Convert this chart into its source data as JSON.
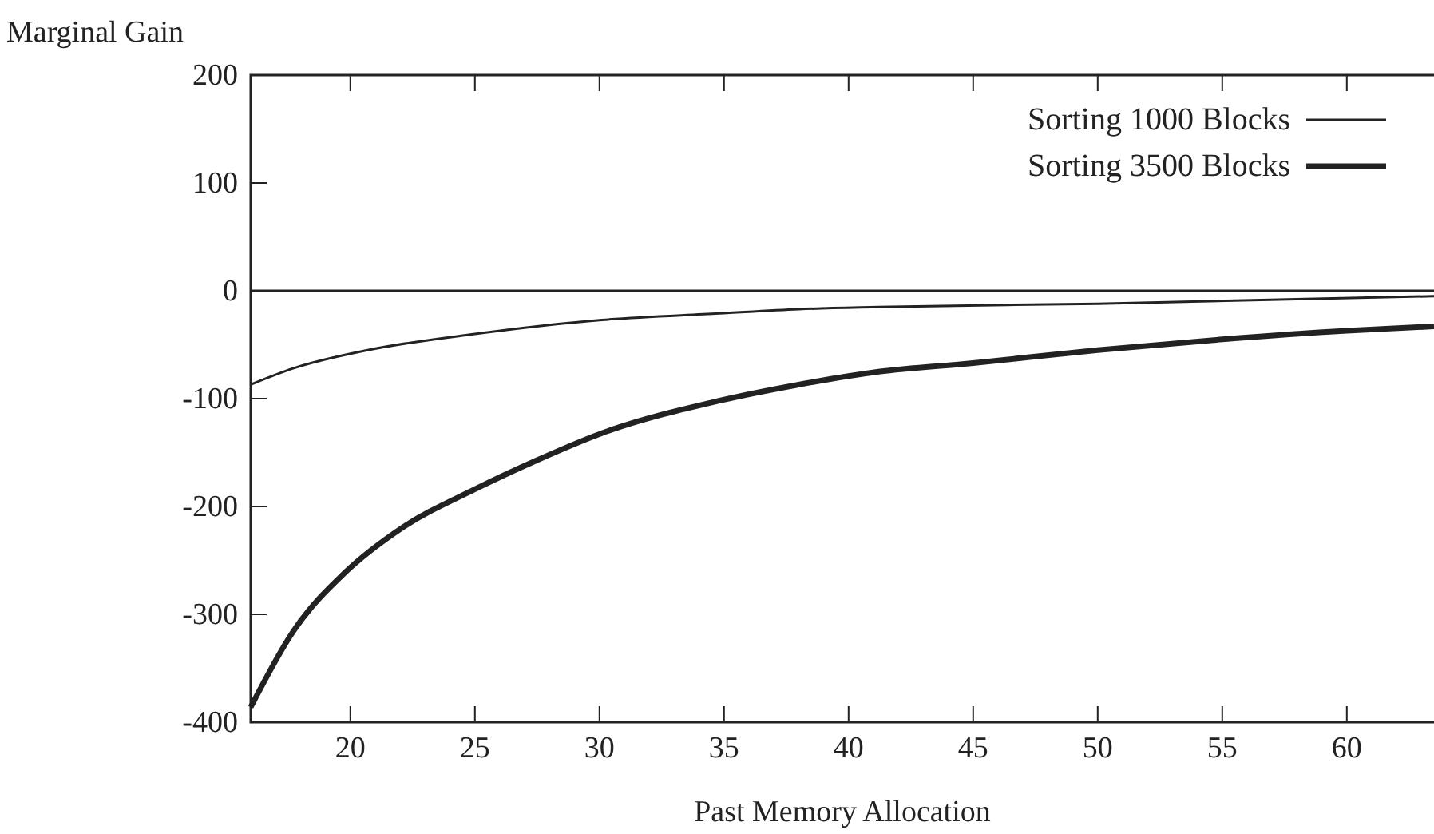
{
  "chart_data": {
    "type": "line",
    "ylabel": "Marginal Gain",
    "xlabel": "Past Memory Allocation",
    "xlim": [
      16,
      63.5
    ],
    "ylim": [
      -400,
      200
    ],
    "xticks": [
      20,
      25,
      30,
      35,
      40,
      45,
      50,
      55,
      60
    ],
    "yticks": [
      -400,
      -300,
      -200,
      -100,
      0,
      100,
      200
    ],
    "legend": "top right",
    "grid": false,
    "line_style": "solid",
    "ref_lines": [
      {
        "axis": "y",
        "value": 0,
        "color": "#222222"
      }
    ],
    "series": [
      {
        "name": "Sorting 1000 Blocks",
        "color": "#222222",
        "x": [
          16,
          17.7,
          20.7,
          25,
          30.1,
          34.8,
          38,
          41.2,
          50,
          63.5
        ],
        "values": [
          -87,
          -72,
          -55,
          -40,
          -27,
          -21,
          -17,
          -15,
          -12,
          -5
        ]
      },
      {
        "name": "Sorting 3500 Blocks",
        "color": "#222222",
        "x": [
          16,
          17.7,
          19.8,
          22,
          25,
          27.5,
          30.1,
          34.8,
          38,
          41.2,
          45,
          50,
          55,
          60,
          63.5
        ],
        "values": [
          -386,
          -316,
          -261,
          -221,
          -184,
          -157,
          -132,
          -102,
          -87,
          -75,
          -67,
          -55,
          -45,
          -37,
          -33
        ]
      }
    ]
  }
}
